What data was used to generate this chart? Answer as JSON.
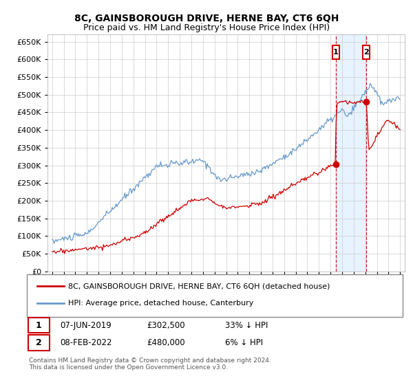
{
  "title": "8C, GAINSBOROUGH DRIVE, HERNE BAY, CT6 6QH",
  "subtitle": "Price paid vs. HM Land Registry's House Price Index (HPI)",
  "legend_line1": "8C, GAINSBOROUGH DRIVE, HERNE BAY, CT6 6QH (detached house)",
  "legend_line2": "HPI: Average price, detached house, Canterbury",
  "sale1_label": "1",
  "sale1_date": "07-JUN-2019",
  "sale1_price": "£302,500",
  "sale1_hpi": "33% ↓ HPI",
  "sale1_year": 2019.44,
  "sale1_value": 302500,
  "sale2_label": "2",
  "sale2_date": "08-FEB-2022",
  "sale2_price": "£480,000",
  "sale2_hpi": "6% ↓ HPI",
  "sale2_year": 2022.1,
  "sale2_value": 480000,
  "red_color": "#cc0000",
  "blue_color": "#6699cc",
  "dashed_color": "#cc2222",
  "marker_box_color": "#cc0000",
  "grid_color": "#cccccc",
  "bg_color": "#ffffff",
  "shaded_color": "#ddeeff",
  "ylim": [
    0,
    670000
  ],
  "yticks": [
    0,
    50000,
    100000,
    150000,
    200000,
    250000,
    300000,
    350000,
    400000,
    450000,
    500000,
    550000,
    600000,
    650000
  ],
  "footnote": "Contains HM Land Registry data © Crown copyright and database right 2024.\nThis data is licensed under the Open Government Licence v3.0."
}
